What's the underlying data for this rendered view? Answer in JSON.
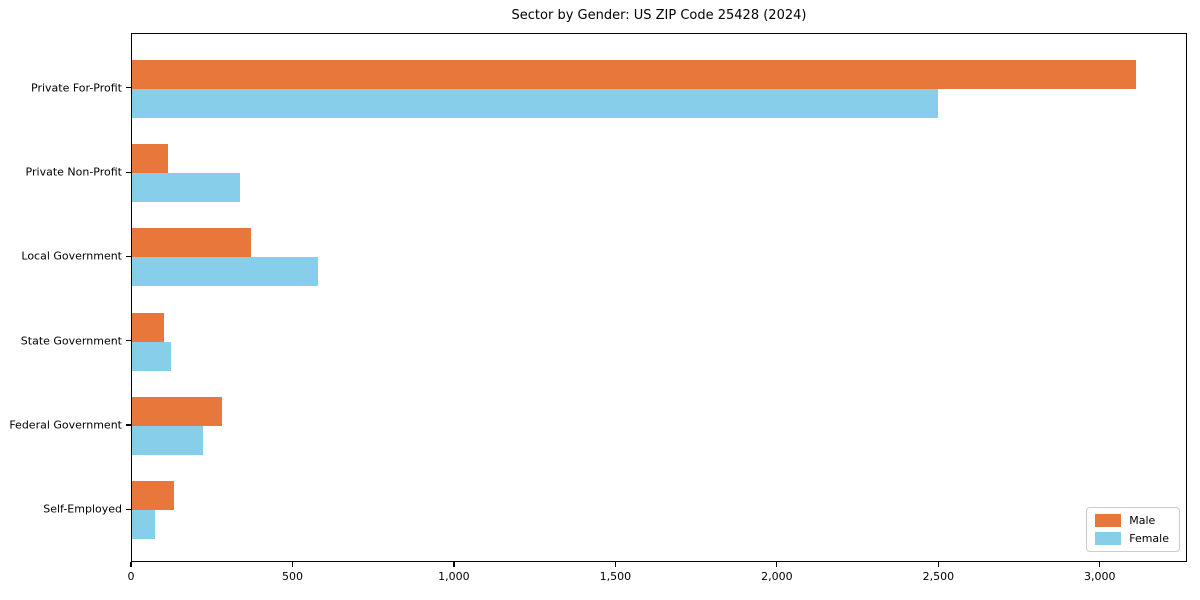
{
  "title": "Sector by Gender: US ZIP Code 25428 (2024)",
  "chart_data": {
    "type": "bar",
    "orientation": "horizontal",
    "title": "Sector by Gender: US ZIP Code 25428 (2024)",
    "categories": [
      "Private For-Profit",
      "Private Non-Profit",
      "Local Government",
      "State Government",
      "Federal Government",
      "Self-Employed"
    ],
    "series": [
      {
        "name": "Male",
        "color": "#e8773c",
        "values": [
          3110,
          110,
          370,
          100,
          278,
          130
        ]
      },
      {
        "name": "Female",
        "color": "#87ceeb",
        "values": [
          2495,
          335,
          575,
          120,
          220,
          70
        ]
      }
    ],
    "xlim": [
      0,
      3270
    ],
    "x_ticks": [
      0,
      500,
      1000,
      1500,
      2000,
      2500,
      3000
    ],
    "x_tick_labels": [
      "0",
      "500",
      "1,000",
      "1,500",
      "2,000",
      "2,500",
      "3,000"
    ],
    "xlabel": "",
    "ylabel": "",
    "grid": false,
    "legend_position": "lower right",
    "frame": "full-box"
  }
}
